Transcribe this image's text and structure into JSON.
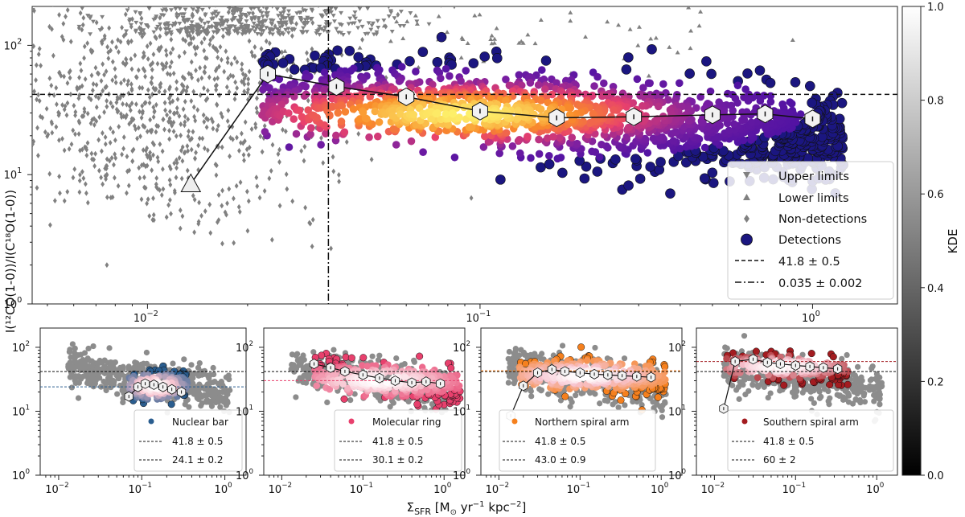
{
  "chart_data": [
    {
      "type": "scatter",
      "panel": "main",
      "xscale": "log",
      "yscale": "log",
      "xlim": [
        0.0045,
        1.8
      ],
      "ylim": [
        1,
        200
      ],
      "x_ticks": [
        0.01,
        0.1,
        1
      ],
      "x_tick_labels": [
        "10",
        "10",
        "10"
      ],
      "x_tick_exponents": [
        "−2",
        "−1",
        "0"
      ],
      "y_ticks": [
        1,
        10,
        100
      ],
      "y_tick_labels": [
        "10",
        "10",
        "10"
      ],
      "y_tick_exponents": [
        "0",
        "1",
        "2"
      ],
      "ylabel": "I(¹²CO(1-0))/I(C¹⁸O(1-0))",
      "hline": 41.8,
      "vline": 0.035,
      "binned_median": {
        "x": [
          0.0135,
          0.023,
          0.037,
          0.06,
          0.1,
          0.17,
          0.29,
          0.5,
          0.72,
          1.0
        ],
        "y": [
          8.5,
          60,
          48,
          40,
          31,
          27.5,
          28,
          29,
          29.5,
          27
        ],
        "markers": [
          "lower-limit",
          "upper-limit",
          "detection",
          "detection",
          "detection",
          "detection",
          "detection",
          "detection",
          "detection",
          "detection"
        ]
      },
      "legend": {
        "position": "lower-right",
        "entries": [
          {
            "marker": "triangle-down",
            "color": "#808080",
            "label": "Upper limits"
          },
          {
            "marker": "triangle-up",
            "color": "#808080",
            "label": "Lower limits"
          },
          {
            "marker": "diamond",
            "color": "#808080",
            "label": "Non-detections"
          },
          {
            "marker": "circle",
            "color": "#1b1680",
            "label": "Detections"
          },
          {
            "marker": "dashed-line",
            "label": "41.8 ± 0.5"
          },
          {
            "marker": "dashdot-line",
            "label": "0.035 ± 0.002"
          }
        ]
      }
    },
    {
      "type": "scatter",
      "panel": "nuclear-bar",
      "xscale": "log",
      "yscale": "log",
      "xlim": [
        0.006,
        1.8
      ],
      "ylim": [
        1,
        200
      ],
      "x_ticks": [
        0.01,
        0.1,
        1
      ],
      "y_ticks": [
        1,
        10,
        100
      ],
      "color": "#2a5d8f",
      "hlines": [
        41.8,
        24.1
      ],
      "binned_median": {
        "x": [
          0.07,
          0.09,
          0.11,
          0.14,
          0.18,
          0.23,
          0.3
        ],
        "y": [
          17,
          24,
          27,
          26,
          24,
          22,
          20
        ]
      },
      "legend": {
        "position": "lower-right",
        "entries": [
          {
            "marker": "circle",
            "label": "Nuclear bar"
          },
          {
            "marker": "dashed-line",
            "label": "41.8 ± 0.5"
          },
          {
            "marker": "dashed-line",
            "label": "24.1 ± 0.2"
          }
        ]
      }
    },
    {
      "type": "scatter",
      "panel": "molecular-ring",
      "xscale": "log",
      "yscale": "log",
      "xlim": [
        0.006,
        1.8
      ],
      "ylim": [
        1,
        200
      ],
      "x_ticks": [
        0.01,
        0.1,
        1
      ],
      "y_ticks": [
        1,
        10,
        100
      ],
      "color": "#e8406d",
      "hlines": [
        41.8,
        30.1
      ],
      "binned_median": {
        "x": [
          0.025,
          0.04,
          0.06,
          0.1,
          0.16,
          0.25,
          0.4,
          0.6,
          0.9
        ],
        "y": [
          55,
          48,
          42,
          37,
          33,
          30,
          28,
          29,
          27
        ]
      },
      "legend": {
        "position": "lower-right",
        "entries": [
          {
            "marker": "circle",
            "label": "Molecular ring"
          },
          {
            "marker": "dashed-line",
            "label": "41.8 ± 0.5"
          },
          {
            "marker": "dashed-line",
            "label": "30.1 ± 0.2"
          }
        ]
      }
    },
    {
      "type": "scatter",
      "panel": "northern-spiral-arm",
      "xscale": "log",
      "yscale": "log",
      "xlim": [
        0.006,
        1.8
      ],
      "ylim": [
        1,
        200
      ],
      "x_ticks": [
        0.01,
        0.1,
        1
      ],
      "y_ticks": [
        1,
        10,
        100
      ],
      "color": "#f5801e",
      "hlines": [
        41.8,
        43.0
      ],
      "binned_median": {
        "x": [
          0.014,
          0.02,
          0.03,
          0.045,
          0.065,
          0.1,
          0.15,
          0.22,
          0.33,
          0.5,
          0.75
        ],
        "y": [
          8.5,
          25,
          40,
          45,
          42,
          40,
          38,
          37,
          36,
          35,
          34
        ]
      },
      "legend": {
        "position": "lower-right",
        "entries": [
          {
            "marker": "circle",
            "label": "Northern spiral arm"
          },
          {
            "marker": "dashed-line",
            "label": "41.8 ± 0.5"
          },
          {
            "marker": "dashed-line",
            "label": "43.0 ± 0.9"
          }
        ]
      }
    },
    {
      "type": "scatter",
      "panel": "southern-spiral-arm",
      "xscale": "log",
      "yscale": "log",
      "xlim": [
        0.006,
        1.8
      ],
      "ylim": [
        1,
        200
      ],
      "x_ticks": [
        0.01,
        0.1,
        1
      ],
      "y_ticks": [
        1,
        10,
        100
      ],
      "color": "#a31c20",
      "hlines": [
        41.8,
        60
      ],
      "binned_median": {
        "x": [
          0.013,
          0.018,
          0.03,
          0.045,
          0.065,
          0.1,
          0.15,
          0.22,
          0.33
        ],
        "y": [
          11,
          60,
          65,
          58,
          55,
          52,
          50,
          48,
          46
        ]
      },
      "legend": {
        "position": "lower-right",
        "entries": [
          {
            "marker": "circle",
            "label": "Southern spiral arm"
          },
          {
            "marker": "dashed-line",
            "label": "41.8 ± 0.5"
          },
          {
            "marker": "dashed-line",
            "label": "60 ± 2"
          }
        ]
      }
    }
  ],
  "shared_xlabel": "Σ",
  "shared_xlabel_sub": "SFR",
  "shared_xlabel_rest": " [M",
  "shared_xlabel_sun": "⊙",
  "shared_xlabel_units": " yr",
  "shared_xlabel_exp1": "−1",
  "shared_xlabel_kpc": " kpc",
  "shared_xlabel_exp2": "−2",
  "shared_xlabel_close": "]",
  "colorbar": {
    "label": "KDE",
    "range": [
      0,
      1
    ],
    "ticks": [
      0.0,
      0.2,
      0.4,
      0.6,
      0.8,
      1.0
    ],
    "tick_labels": [
      "0.0",
      "0.2",
      "0.4",
      "0.6",
      "0.8",
      "1.0"
    ]
  },
  "colors": {
    "gray": "#808080",
    "detection": "#1b1680",
    "hot_start": "#fdd63a",
    "hot_mid": "#e8406d",
    "hot_end": "#3a0ca3"
  }
}
